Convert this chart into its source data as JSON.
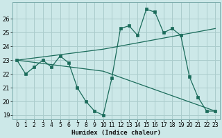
{
  "title": "",
  "xlabel": "Humidex (Indice chaleur)",
  "xlim": [
    -0.5,
    23.5
  ],
  "ylim": [
    18.7,
    27.2
  ],
  "yticks": [
    19,
    20,
    21,
    22,
    23,
    24,
    25,
    26
  ],
  "xticks": [
    0,
    1,
    2,
    3,
    4,
    5,
    6,
    7,
    8,
    9,
    10,
    11,
    12,
    13,
    14,
    15,
    16,
    17,
    18,
    19,
    20,
    21,
    22,
    23
  ],
  "bg_color": "#cce8e8",
  "grid_color": "#aacccc",
  "line_color": "#1a6b5a",
  "line1": {
    "x": [
      0,
      1,
      2,
      3,
      4,
      5,
      6,
      7,
      8,
      9,
      10,
      11,
      12,
      13,
      14,
      15,
      16,
      17,
      18,
      19,
      20,
      21,
      22,
      23
    ],
    "y": [
      23.0,
      22.0,
      22.5,
      23.0,
      22.5,
      23.3,
      22.8,
      21.0,
      20.0,
      19.3,
      19.0,
      21.7,
      25.3,
      25.5,
      24.8,
      26.7,
      26.5,
      25.0,
      25.3,
      24.8,
      21.8,
      20.3,
      19.3,
      19.3
    ]
  },
  "line2": {
    "x": [
      0,
      10,
      23
    ],
    "y": [
      23.0,
      23.8,
      25.3
    ]
  },
  "line3": {
    "x": [
      0,
      10,
      23
    ],
    "y": [
      23.0,
      22.2,
      19.3
    ]
  }
}
